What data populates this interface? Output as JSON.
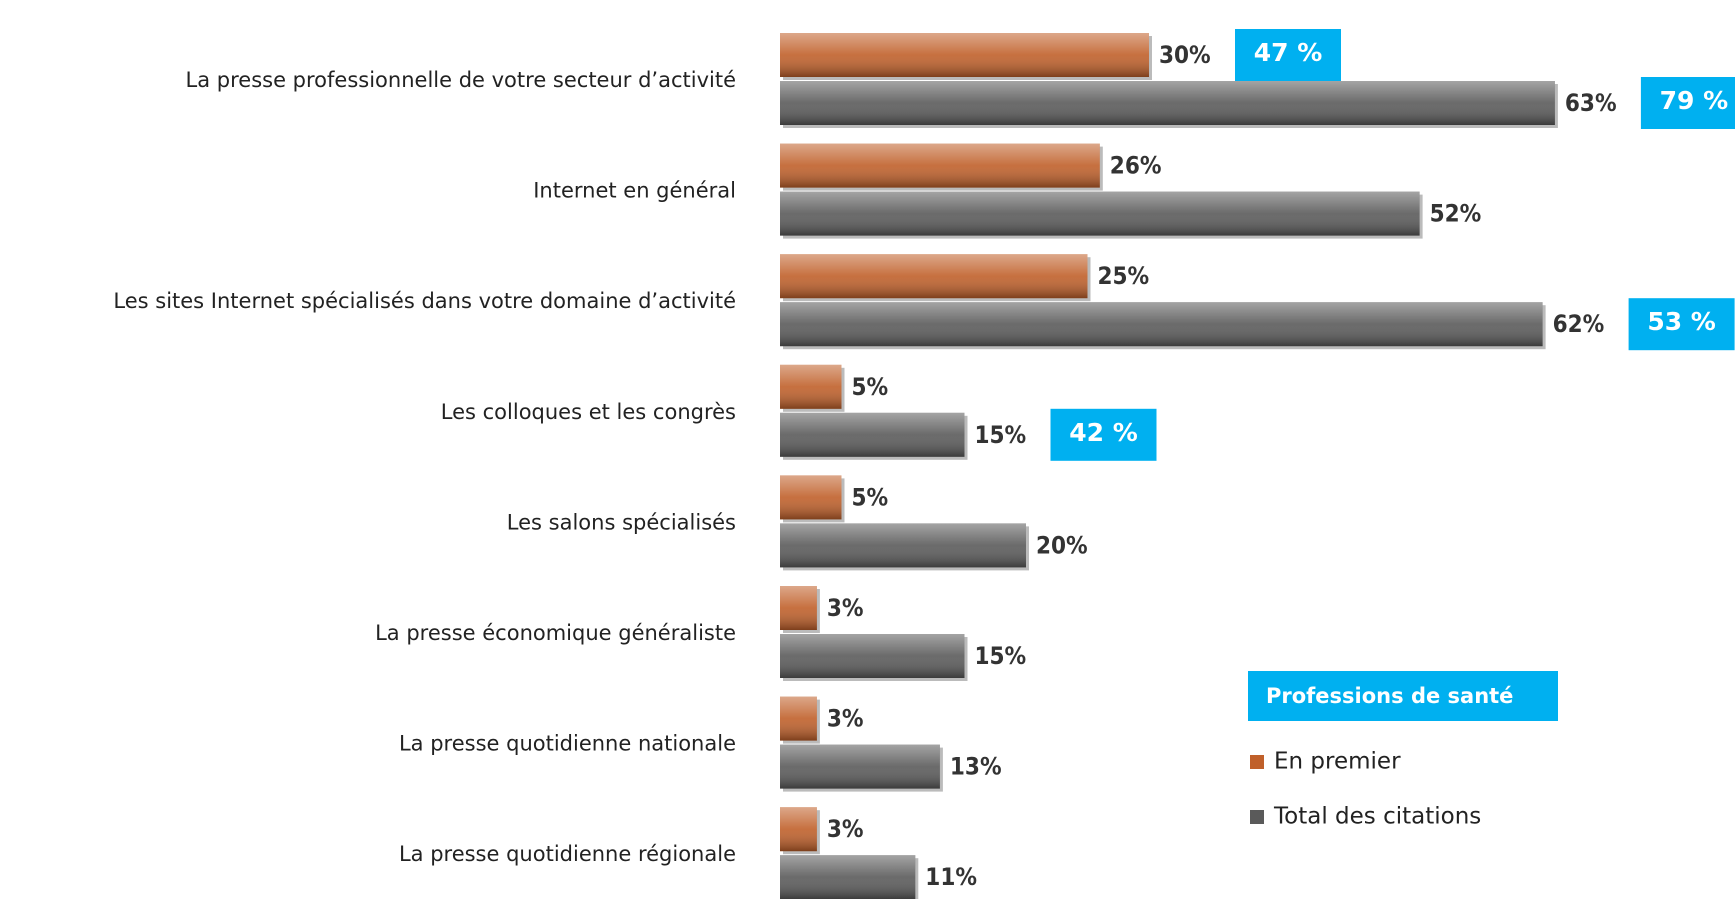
{
  "chart_data": {
    "type": "bar",
    "orientation": "horizontal",
    "categories": [
      "La presse professionnelle de votre secteur d’activité",
      "Internet en général",
      "Les sites Internet spécialisés dans votre domaine d’activité",
      "Les colloques et les congrès",
      "Les salons spécialisés",
      "La presse économique généraliste",
      "La presse quotidienne nationale",
      "La presse quotidienne régionale"
    ],
    "series": [
      {
        "name": "En premier",
        "color": "#c0602a",
        "values": [
          30,
          26,
          25,
          5,
          5,
          3,
          3,
          3
        ],
        "value_labels": [
          "30%",
          "26%",
          "25%",
          "5%",
          "5%",
          "3%",
          "3%",
          "3%"
        ],
        "callouts": [
          "47 %",
          null,
          null,
          null,
          null,
          null,
          null,
          null
        ]
      },
      {
        "name": "Total des citations",
        "color": "#5a5a5a",
        "values": [
          63,
          52,
          62,
          15,
          20,
          15,
          13,
          11
        ],
        "value_labels": [
          "63%",
          "52%",
          "62%",
          "15%",
          "20%",
          "15%",
          "13%",
          "11%"
        ],
        "callouts": [
          "79 %",
          null,
          "53 %",
          "42 %",
          null,
          null,
          null,
          null
        ]
      }
    ],
    "legend_title": "Professions de santé",
    "callout_color": "#00b0f0"
  }
}
